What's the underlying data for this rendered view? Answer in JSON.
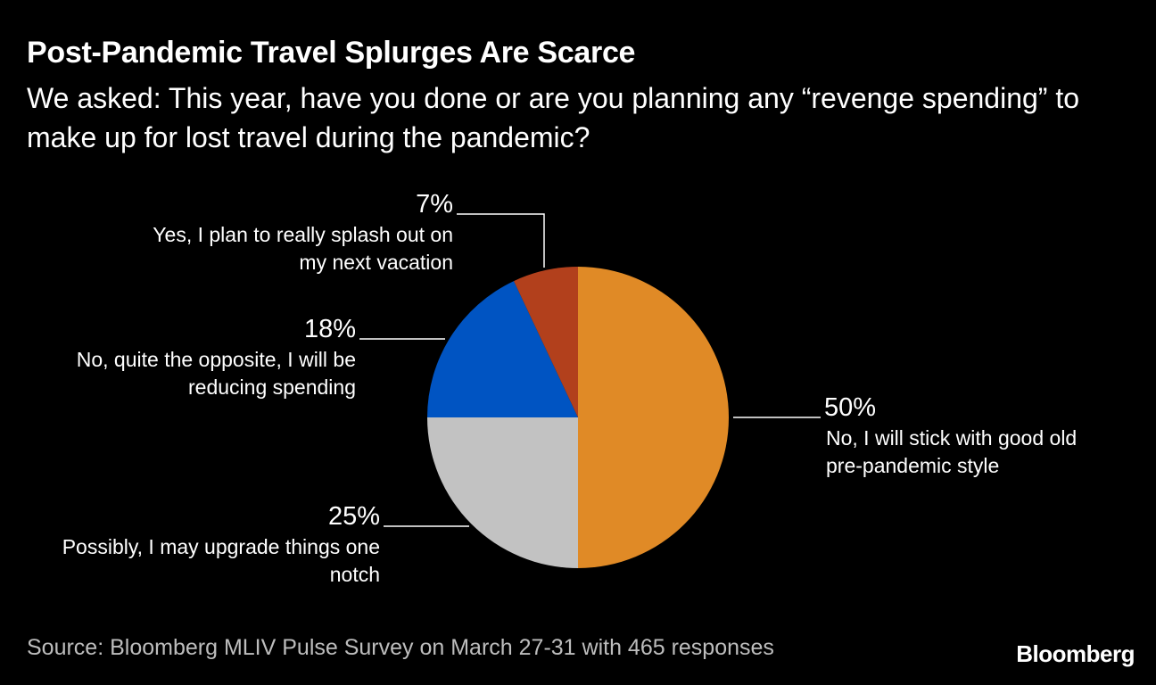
{
  "title": "Post-Pandemic Travel Splurges Are Scarce",
  "subtitle": "We asked: This year, have you done or are you planning any “revenge spending” to make up for lost travel during the pandemic?",
  "source": "Source: Bloomberg MLIV Pulse Survey on March 27-31 with 465 responses",
  "logo": "Bloomberg",
  "chart_data": {
    "type": "pie",
    "slices": [
      {
        "label_lines": [
          "No, I will stick with good old",
          "pre-pandemic style"
        ],
        "value": 50,
        "value_label": "50%",
        "color": "#e08a26"
      },
      {
        "label_lines": [
          "Possibly, I may upgrade things one",
          "notch"
        ],
        "value": 25,
        "value_label": "25%",
        "color": "#c2c2c2"
      },
      {
        "label_lines": [
          "No, quite the opposite, I will be",
          "reducing spending"
        ],
        "value": 18,
        "value_label": "18%",
        "color": "#0054c2"
      },
      {
        "label_lines": [
          "Yes, I plan to really splash out on",
          "my next vacation"
        ],
        "value": 7,
        "value_label": "7%",
        "color": "#b2401c"
      }
    ]
  }
}
